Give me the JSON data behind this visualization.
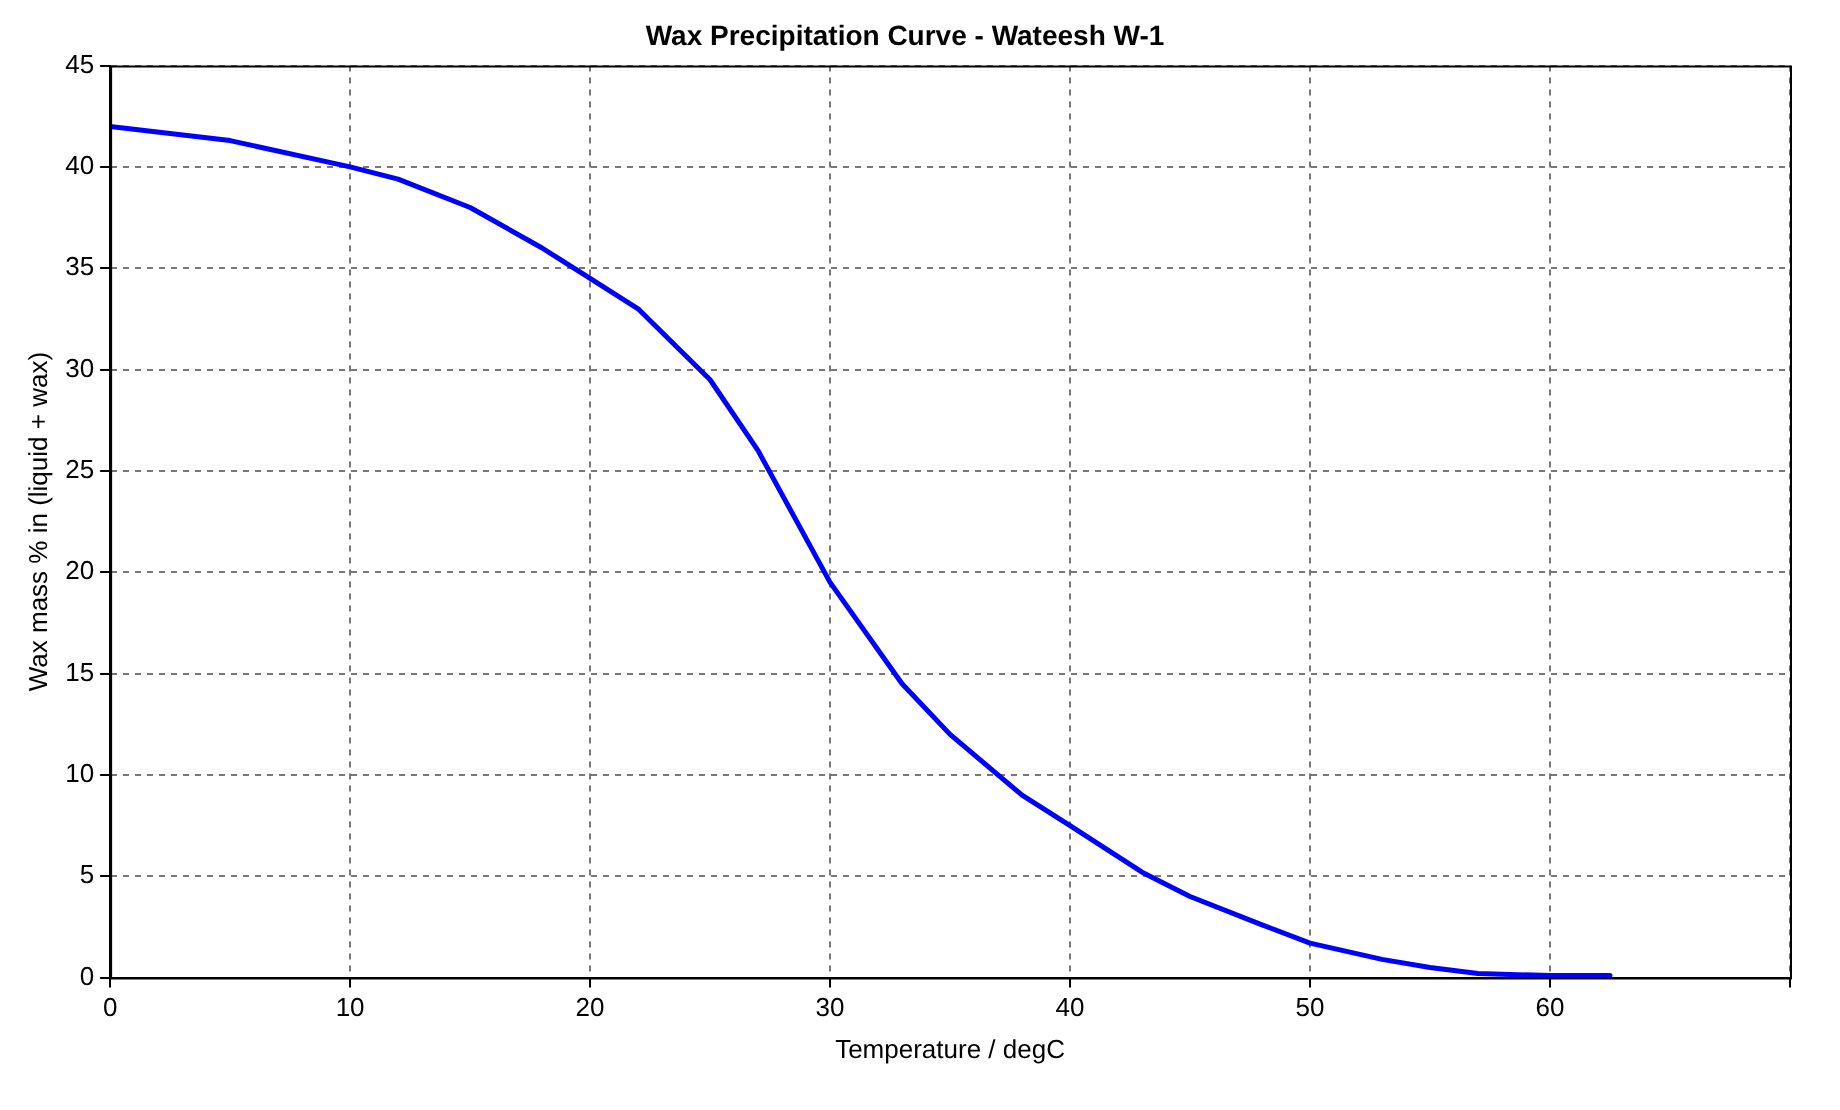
{
  "chart_data": {
    "type": "line",
    "title": "Wax Precipitation Curve - Wateesh W-1",
    "xlabel": "Temperature / degC",
    "ylabel": "Wax mass % in (liquid + wax)",
    "x": [
      0,
      5,
      10,
      12,
      15,
      18,
      20,
      22,
      25,
      27,
      30,
      33,
      35,
      38,
      40,
      43,
      45,
      48,
      50,
      53,
      55,
      57,
      60,
      62.5
    ],
    "series": [
      {
        "color": "#0000ff",
        "values": [
          42,
          41.3,
          40,
          39.4,
          38,
          36,
          34.5,
          33,
          29.5,
          26,
          19.5,
          14.5,
          12,
          9,
          7.5,
          5.2,
          4,
          2.6,
          1.7,
          0.9,
          0.5,
          0.2,
          0.1,
          0.1
        ]
      }
    ],
    "xlim": [
      0,
      70
    ],
    "xticks": [
      0,
      10,
      20,
      30,
      40,
      50,
      60,
      {
        "value": 70,
        "label": null
      }
    ],
    "ylim": [
      0,
      45
    ],
    "yticks": [
      0,
      5,
      10,
      15,
      20,
      25,
      30,
      35,
      40,
      45
    ],
    "grid": true,
    "legend": false,
    "marker": "none",
    "line_style": "solid"
  }
}
